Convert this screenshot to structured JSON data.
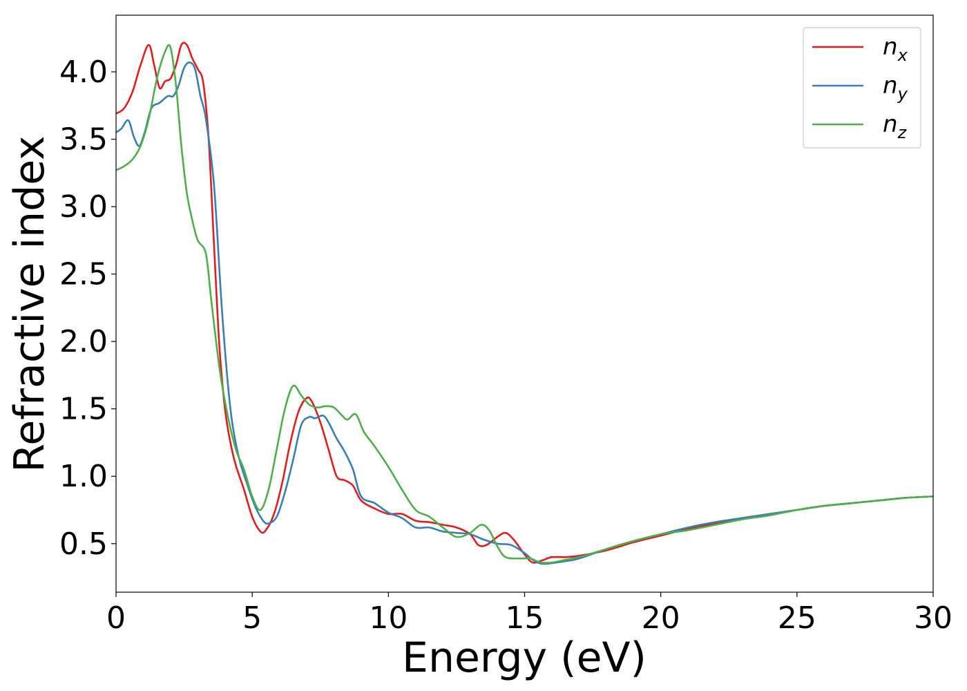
{
  "chart_data": {
    "type": "line",
    "xlabel": "Energy (eV)",
    "ylabel": "Refractive index",
    "xlim": [
      0,
      30
    ],
    "ylim": [
      0.14,
      4.42
    ],
    "xticks": [
      0,
      5,
      10,
      15,
      20,
      25,
      30
    ],
    "xtick_labels": [
      "0",
      "5",
      "10",
      "15",
      "20",
      "25",
      "30"
    ],
    "yticks": [
      0.5,
      1.0,
      1.5,
      2.0,
      2.5,
      3.0,
      3.5,
      4.0
    ],
    "ytick_labels": [
      "0.5",
      "1.0",
      "1.5",
      "2.0",
      "2.5",
      "3.0",
      "3.5",
      "4.0"
    ],
    "grid": false,
    "legend_position": "top-right",
    "series": [
      {
        "name": "n_x",
        "label_base": "n",
        "label_sub": "x",
        "color": "#e41a1c",
        "x": [
          0,
          0.3,
          0.6,
          0.9,
          1.2,
          1.4,
          1.6,
          1.8,
          2.0,
          2.2,
          2.4,
          2.6,
          2.8,
          3.0,
          3.2,
          3.4,
          3.6,
          3.8,
          4.0,
          4.2,
          4.4,
          4.7,
          5.0,
          5.3,
          5.5,
          5.8,
          6.1,
          6.4,
          6.7,
          7.0,
          7.2,
          7.5,
          7.8,
          8.1,
          8.4,
          8.7,
          9.0,
          9.5,
          10.0,
          10.5,
          11.0,
          11.5,
          12.0,
          12.5,
          13.0,
          13.3,
          13.6,
          14.0,
          14.3,
          14.6,
          15.0,
          15.3,
          15.7,
          16.0,
          16.5,
          17.0,
          18.0,
          19.0,
          20.0,
          21.0,
          22.0,
          23.0,
          24.0,
          25.0,
          26.0,
          27.0,
          28.0,
          29.0,
          30.0
        ],
        "values": [
          3.69,
          3.73,
          3.85,
          4.05,
          4.2,
          4.05,
          3.88,
          3.93,
          3.95,
          4.05,
          4.2,
          4.2,
          4.1,
          4.02,
          3.92,
          3.5,
          2.7,
          1.95,
          1.5,
          1.25,
          1.08,
          0.9,
          0.7,
          0.59,
          0.6,
          0.72,
          0.95,
          1.25,
          1.48,
          1.58,
          1.55,
          1.4,
          1.2,
          1.0,
          0.97,
          0.93,
          0.82,
          0.76,
          0.72,
          0.72,
          0.67,
          0.66,
          0.64,
          0.62,
          0.57,
          0.49,
          0.49,
          0.55,
          0.58,
          0.53,
          0.42,
          0.36,
          0.38,
          0.4,
          0.4,
          0.41,
          0.45,
          0.51,
          0.56,
          0.61,
          0.65,
          0.69,
          0.72,
          0.75,
          0.78,
          0.8,
          0.82,
          0.84,
          0.85
        ]
      },
      {
        "name": "n_y",
        "label_base": "n",
        "label_sub": "y",
        "color": "#377eb8",
        "x": [
          0,
          0.2,
          0.45,
          0.65,
          0.85,
          1.05,
          1.3,
          1.6,
          1.9,
          2.1,
          2.3,
          2.5,
          2.7,
          2.9,
          3.1,
          3.3,
          3.6,
          3.9,
          4.2,
          4.5,
          4.8,
          5.1,
          5.4,
          5.6,
          5.9,
          6.2,
          6.5,
          6.8,
          7.1,
          7.3,
          7.6,
          7.8,
          8.1,
          8.4,
          8.7,
          9.0,
          9.5,
          10.0,
          10.5,
          11.0,
          11.5,
          12.0,
          12.5,
          13.0,
          13.5,
          14.0,
          14.5,
          15.0,
          15.3,
          15.7,
          16.5,
          17.0,
          18.0,
          19.0,
          20.0,
          21.0,
          22.0,
          23.0,
          24.0,
          25.0,
          26.0,
          27.0,
          28.0,
          29.0,
          30.0
        ],
        "values": [
          3.55,
          3.58,
          3.64,
          3.52,
          3.45,
          3.55,
          3.73,
          3.77,
          3.82,
          3.82,
          3.9,
          4.03,
          4.07,
          4.02,
          3.82,
          3.65,
          3.15,
          2.2,
          1.5,
          1.15,
          0.95,
          0.78,
          0.67,
          0.65,
          0.7,
          0.88,
          1.12,
          1.38,
          1.44,
          1.43,
          1.45,
          1.4,
          1.28,
          1.18,
          1.05,
          0.85,
          0.8,
          0.73,
          0.69,
          0.62,
          0.62,
          0.59,
          0.58,
          0.57,
          0.53,
          0.5,
          0.49,
          0.43,
          0.38,
          0.35,
          0.37,
          0.39,
          0.46,
          0.52,
          0.57,
          0.62,
          0.66,
          0.69,
          0.72,
          0.75,
          0.78,
          0.8,
          0.82,
          0.84,
          0.85
        ]
      },
      {
        "name": "n_z",
        "label_base": "n",
        "label_sub": "z",
        "color": "#4daf4a",
        "x": [
          0,
          0.3,
          0.6,
          0.9,
          1.2,
          1.5,
          1.8,
          2.0,
          2.2,
          2.4,
          2.6,
          2.8,
          3.0,
          3.3,
          3.5,
          3.8,
          4.1,
          4.4,
          4.7,
          5.0,
          5.3,
          5.6,
          5.9,
          6.2,
          6.5,
          6.8,
          7.1,
          7.4,
          7.7,
          8.0,
          8.3,
          8.5,
          8.8,
          9.1,
          9.5,
          10.0,
          10.5,
          11.0,
          11.5,
          12.0,
          12.5,
          13.0,
          13.4,
          13.7,
          14.0,
          14.3,
          14.8,
          15.2,
          15.6,
          16.0,
          16.5,
          17.0,
          18.0,
          19.0,
          20.0,
          21.0,
          22.0,
          23.0,
          24.0,
          25.0,
          26.0,
          27.0,
          28.0,
          29.0,
          30.0
        ],
        "values": [
          3.27,
          3.3,
          3.35,
          3.45,
          3.65,
          3.95,
          4.15,
          4.18,
          3.9,
          3.45,
          3.1,
          2.9,
          2.75,
          2.65,
          2.3,
          1.8,
          1.45,
          1.2,
          1.05,
          0.85,
          0.75,
          0.9,
          1.2,
          1.5,
          1.67,
          1.6,
          1.53,
          1.51,
          1.52,
          1.51,
          1.45,
          1.42,
          1.46,
          1.33,
          1.22,
          1.07,
          0.9,
          0.75,
          0.7,
          0.62,
          0.55,
          0.58,
          0.64,
          0.6,
          0.48,
          0.4,
          0.39,
          0.39,
          0.36,
          0.36,
          0.38,
          0.4,
          0.46,
          0.52,
          0.57,
          0.6,
          0.64,
          0.68,
          0.71,
          0.75,
          0.78,
          0.8,
          0.82,
          0.84,
          0.85
        ]
      }
    ]
  }
}
